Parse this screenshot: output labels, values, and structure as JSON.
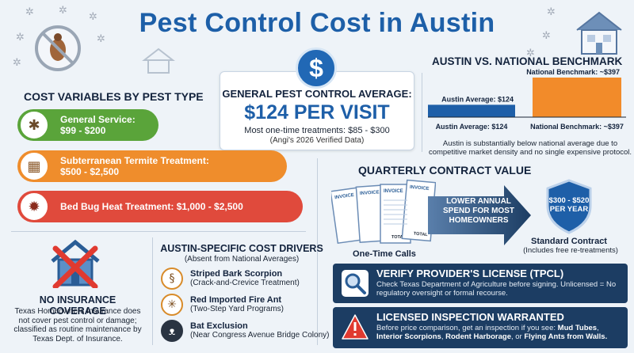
{
  "title": "Pest Control Cost in Austin",
  "average": {
    "label": "GENERAL PEST CONTROL AVERAGE:",
    "value": "$124 PER VISIT",
    "range": "Most one-time treatments: $85 - $300",
    "source": "(Angi's 2026 Verified Data)"
  },
  "cost_variables": {
    "title": "COST VARIABLES BY PEST TYPE",
    "items": [
      {
        "line1": "General Service:",
        "line2": "$99 - $200",
        "icon": "cockroach-icon"
      },
      {
        "line1": "Subterranean Termite Treatment:",
        "line2": "$500 - $2,500",
        "icon": "termite-wood-icon"
      },
      {
        "line1": "Bed Bug Heat Treatment: $1,000 - $2,500",
        "line2": "",
        "icon": "bed-bug-thermometer-icon"
      }
    ]
  },
  "no_insurance": {
    "title": "NO INSURANCE COVERAGE",
    "text": "Texas Homeowners Insurance does not cover pest control or damage; classified as routine maintenance by Texas Dept. of Insurance."
  },
  "drivers": {
    "title": "AUSTIN-SPECIFIC COST DRIVERS",
    "subtitle": "(Absent from National Averages)",
    "items": [
      {
        "name": "Striped Bark Scorpion",
        "detail": "(Crack-and-Crevice Treatment)",
        "icon": "scorpion-icon"
      },
      {
        "name": "Red Imported Fire Ant",
        "detail": "(Two-Step Yard Programs)",
        "icon": "fire-ant-icon"
      },
      {
        "name": "Bat Exclusion",
        "detail": "(Near Congress Avenue Bridge Colony)",
        "icon": "bat-icon"
      }
    ]
  },
  "benchmark": {
    "title": "AUSTIN VS. NATIONAL BENCHMARK",
    "note": "Austin is substantially below national average due to competitive market density and no single expensive protocol."
  },
  "chart_data": {
    "type": "bar",
    "title": "AUSTIN VS. NATIONAL BENCHMARK",
    "categories": [
      "Austin Average: $124",
      "National Benchmark: ~$397"
    ],
    "values": [
      124,
      397
    ],
    "data_labels": [
      "Austin Average: $124",
      "National Benchmark: ~$397"
    ],
    "colors": [
      "#1e5fa8",
      "#f28b2a"
    ],
    "ylim": [
      0,
      397
    ],
    "grid": false
  },
  "quarterly": {
    "title": "QUARTERLY CONTRACT VALUE",
    "invoice_word": "INVOICE",
    "total_word": "TOTAL",
    "one_time_label": "One-Time Calls",
    "arrow_text": "LOWER ANNUAL SPEND FOR MOST HOMEOWNERS",
    "shield_text": "$300 - $520 PER YEAR",
    "contract_title": "Standard Contract",
    "contract_sub": "(Includes free re-treatments)"
  },
  "banners": {
    "license": {
      "title": "VERIFY PROVIDER'S LICENSE (TPCL)",
      "text": "Check Texas Department of Agriculture before signing. Unlicensed = No regulatory oversight or formal recourse."
    },
    "inspection": {
      "title": "LICENSED INSPECTION WARRANTED",
      "text_lead": "Before price comparison, get an inspection if you see: ",
      "term1": "Mud Tubes",
      "term2": "Interior Scorpions",
      "term3": "Rodent Harborage",
      "term4": "Flying Ants from Walls."
    }
  },
  "colors": {
    "title_blue": "#1d5fa8",
    "green": "#5aa43a",
    "orange": "#ef8d2c",
    "red": "#e04a3c",
    "navy": "#1c3d63"
  }
}
